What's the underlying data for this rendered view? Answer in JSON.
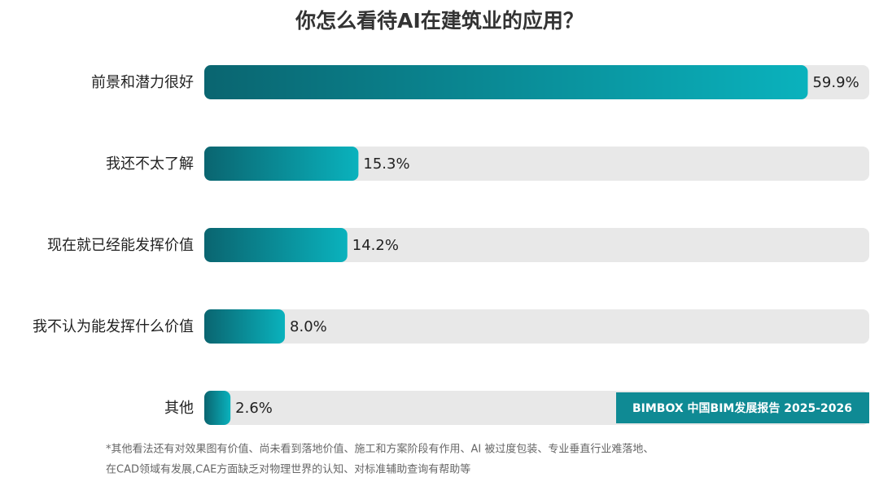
{
  "chart_data": {
    "type": "hbar",
    "title": "你怎么看待AI在建筑业的应用？",
    "categories": [
      "前景和潜力很好",
      "我还不太了解",
      "现在就已经能发挥价值",
      "我不认为能发挥什么价值",
      "其他"
    ],
    "values": [
      59.9,
      15.3,
      14.2,
      8.0,
      2.6
    ],
    "value_labels": [
      "59.9%",
      "15.3%",
      "14.2%",
      "8.0%",
      "2.6%"
    ],
    "xlim": [
      0,
      66
    ],
    "gradient": [
      "#0a6570",
      "#0ab2bd"
    ],
    "track_color": "#e8e8e8",
    "badge": "BIMBOX 中国BIM发展报告 2025-2026",
    "badge_color": "#0f8a94",
    "footnote": [
      "*其他看法还有对效果图有价值、尚未看到落地价值、施工和方案阶段有作用、AI 被过度包装、专业垂直行业难落地、",
      "在CAD领域有发展,CAE方面缺乏对物理世界的认知、对标准辅助查询有帮助等"
    ]
  }
}
